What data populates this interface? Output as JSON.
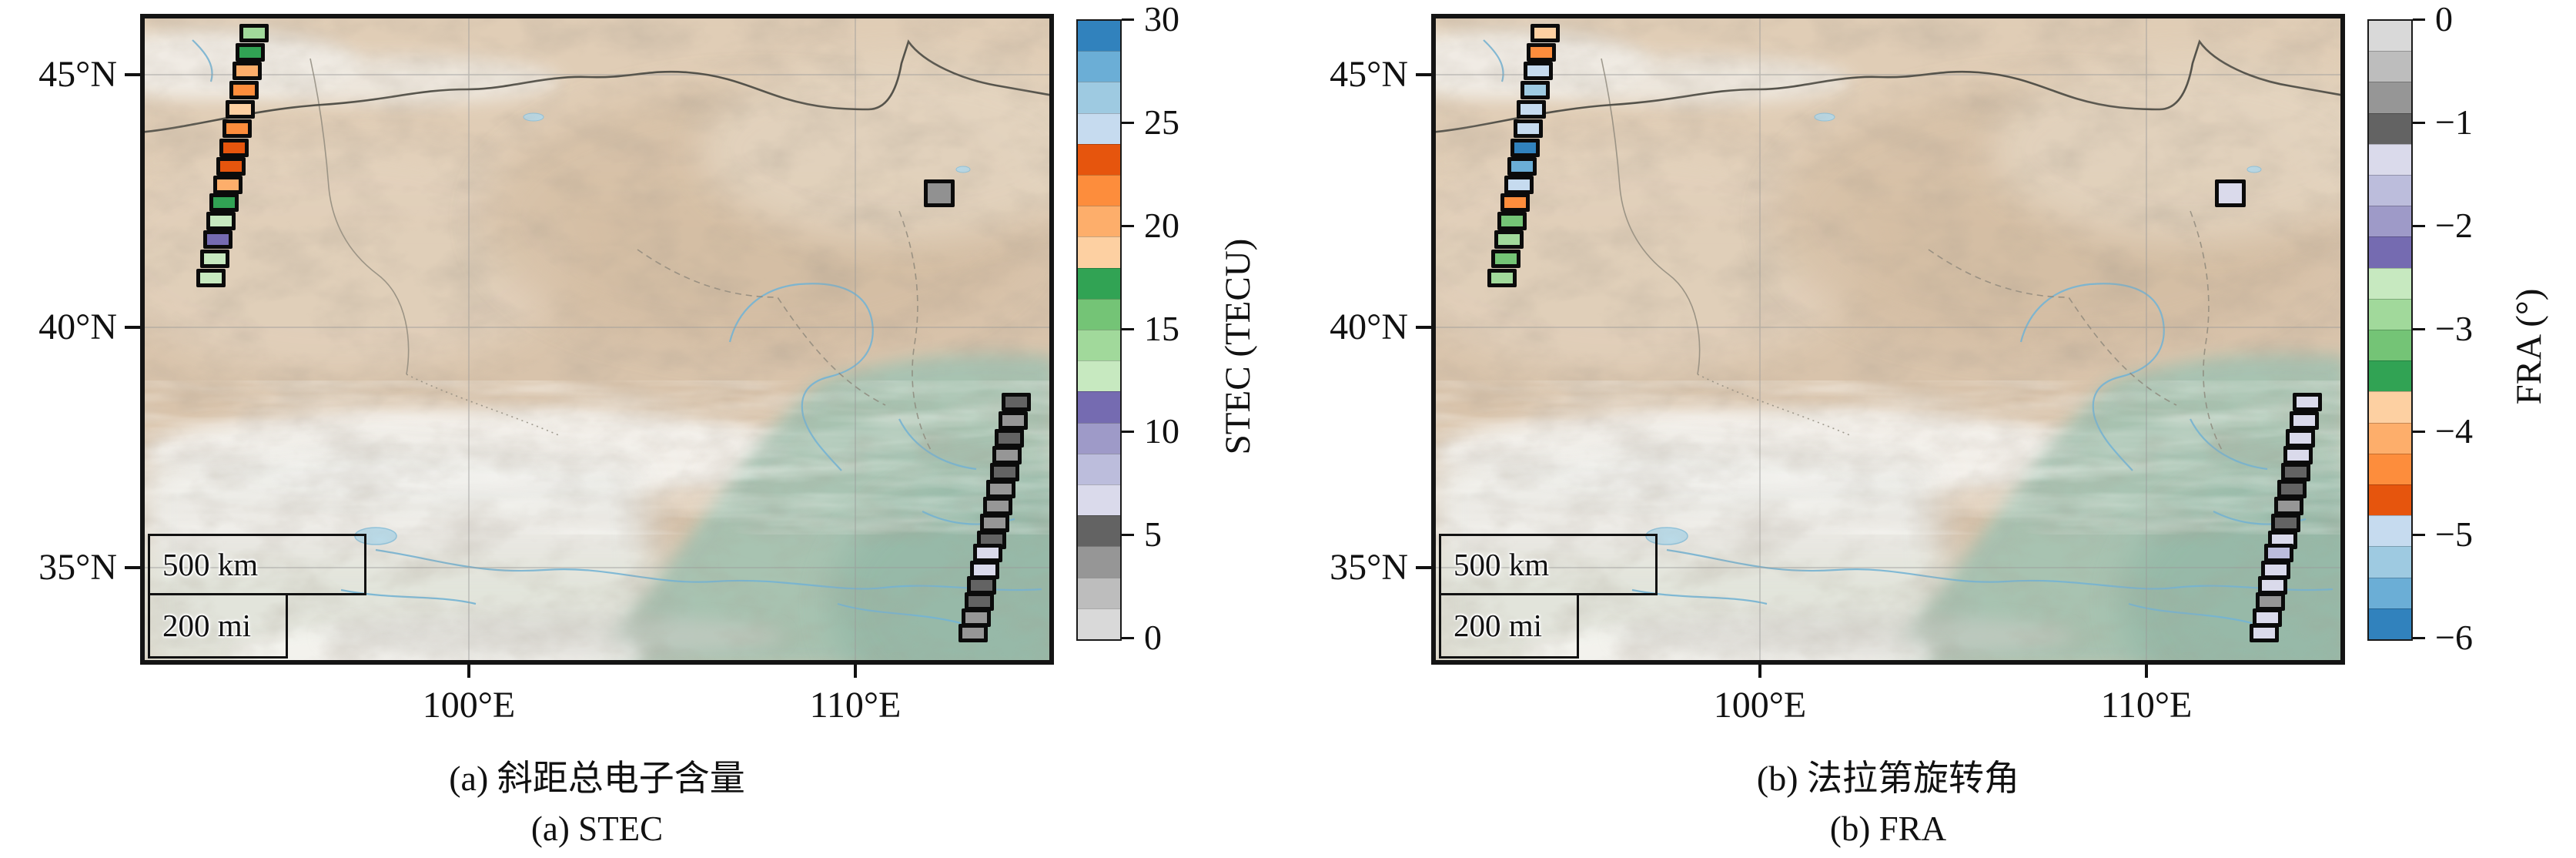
{
  "figure": {
    "panels": [
      {
        "id": "a",
        "caption_cn": "(a) 斜距总电子含量",
        "caption_en": "(a) STEC",
        "scalebar": {
          "km": "500 km",
          "mi": "200 mi"
        },
        "axes": {
          "y_ticks": [
            {
              "label": "45°N",
              "y": 73
            },
            {
              "label": "40°N",
              "y": 401
            },
            {
              "label": "35°N",
              "y": 713
            }
          ],
          "x_ticks": [
            {
              "label": "100°E",
              "x": 421
            },
            {
              "label": "110°E",
              "x": 923
            }
          ]
        },
        "colorbar": {
          "title": "STEC (TECU)",
          "vmin": 0,
          "vmax": 30,
          "ticks": [
            {
              "label": "30",
              "value": 30
            },
            {
              "label": "25",
              "value": 25
            },
            {
              "label": "20",
              "value": 20
            },
            {
              "label": "15",
              "value": 15
            },
            {
              "label": "10",
              "value": 10
            },
            {
              "label": "5",
              "value": 5
            },
            {
              "label": "0",
              "value": 0
            }
          ],
          "segments_top_to_bottom": [
            "#3182bd",
            "#6baed6",
            "#9ecae1",
            "#c6dbef",
            "#e6550d",
            "#fd8d3c",
            "#fdae6b",
            "#fdd0a2",
            "#31a354",
            "#74c476",
            "#a1d99b",
            "#c7e9c0",
            "#756bb1",
            "#9e9ac8",
            "#bcbddc",
            "#dadaeb",
            "#636363",
            "#969696",
            "#bdbdbd",
            "#d9d9d9"
          ]
        },
        "markers": {
          "track_nw": [
            [
              142,
              19,
              "#a1d99b"
            ],
            [
              137,
              44,
              "#31a354"
            ],
            [
              133,
              68,
              "#fdae6b"
            ],
            [
              129,
              93,
              "#fd8d3c"
            ],
            [
              124,
              118,
              "#fdd0a2"
            ],
            [
              120,
              143,
              "#fd8d3c"
            ],
            [
              116,
              168,
              "#e6550d"
            ],
            [
              112,
              192,
              "#e6550d"
            ],
            [
              108,
              216,
              "#fdae6b"
            ],
            [
              103,
              239,
              "#31a354"
            ],
            [
              99,
              263,
              "#c7e9c0"
            ],
            [
              95,
              287,
              "#756bb1"
            ],
            [
              91,
              312,
              "#c7e9c0"
            ],
            [
              86,
              337,
              "#c7e9c0"
            ]
          ],
          "track_se": [
            [
              1132,
              498,
              "#636363"
            ],
            [
              1128,
              522,
              "#969696"
            ],
            [
              1123,
              545,
              "#636363"
            ],
            [
              1120,
              567,
              "#969696"
            ],
            [
              1117,
              589,
              "#636363"
            ],
            [
              1112,
              611,
              "#969696"
            ],
            [
              1108,
              633,
              "#969696"
            ],
            [
              1104,
              655,
              "#969696"
            ],
            [
              1100,
              677,
              "#636363"
            ],
            [
              1095,
              694,
              "#dadaeb"
            ],
            [
              1091,
              716,
              "#dadaeb"
            ],
            [
              1087,
              736,
              "#636363"
            ],
            [
              1084,
              757,
              "#636363"
            ],
            [
              1080,
              778,
              "#969696"
            ],
            [
              1076,
              798,
              "#969696"
            ]
          ],
          "isolated": [
            1032,
            227,
            "#919191"
          ]
        }
      },
      {
        "id": "b",
        "caption_cn": "(b) 法拉第旋转角",
        "caption_en": "(b) FRA",
        "scalebar": {
          "km": "500 km",
          "mi": "200 mi"
        },
        "axes": {
          "y_ticks": [
            {
              "label": "45°N",
              "y": 73
            },
            {
              "label": "40°N",
              "y": 401
            },
            {
              "label": "35°N",
              "y": 713
            }
          ],
          "x_ticks": [
            {
              "label": "100°E",
              "x": 421
            },
            {
              "label": "110°E",
              "x": 923
            }
          ]
        },
        "colorbar": {
          "title": "FRA (°)",
          "vmin": -6,
          "vmax": 0,
          "ticks": [
            {
              "label": "0",
              "value": 0
            },
            {
              "label": "−1",
              "value": -1
            },
            {
              "label": "−2",
              "value": -2
            },
            {
              "label": "−3",
              "value": -3
            },
            {
              "label": "−4",
              "value": -4
            },
            {
              "label": "−5",
              "value": -5
            },
            {
              "label": "−6",
              "value": -6
            }
          ],
          "segments_top_to_bottom": [
            "#d9d9d9",
            "#bdbdbd",
            "#969696",
            "#636363",
            "#dadaeb",
            "#bcbddc",
            "#9e9ac8",
            "#756bb1",
            "#c7e9c0",
            "#a1d99b",
            "#74c476",
            "#31a354",
            "#fdd0a2",
            "#fdae6b",
            "#fd8d3c",
            "#e6550d",
            "#c6dbef",
            "#9ecae1",
            "#6baed6",
            "#3182bd"
          ]
        },
        "markers": {
          "track_nw": [
            [
              142,
              19,
              "#fdd0a2"
            ],
            [
              137,
              44,
              "#fd8d3c"
            ],
            [
              133,
              68,
              "#c6dbef"
            ],
            [
              129,
              93,
              "#9ecae1"
            ],
            [
              124,
              118,
              "#c6dbef"
            ],
            [
              120,
              143,
              "#c6dbef"
            ],
            [
              116,
              168,
              "#3182bd"
            ],
            [
              112,
              192,
              "#6baed6"
            ],
            [
              108,
              216,
              "#c6dbef"
            ],
            [
              103,
              239,
              "#fd8d3c"
            ],
            [
              99,
              263,
              "#74c476"
            ],
            [
              95,
              287,
              "#a1d99b"
            ],
            [
              91,
              312,
              "#74c476"
            ],
            [
              86,
              337,
              "#a1d99b"
            ]
          ],
          "track_se": [
            [
              1132,
              498,
              "#dadaeb"
            ],
            [
              1128,
              522,
              "#dadaeb"
            ],
            [
              1123,
              545,
              "#dadaeb"
            ],
            [
              1120,
              567,
              "#dadaeb"
            ],
            [
              1117,
              589,
              "#636363"
            ],
            [
              1112,
              611,
              "#636363"
            ],
            [
              1108,
              633,
              "#969696"
            ],
            [
              1104,
              655,
              "#636363"
            ],
            [
              1100,
              677,
              "#dadaeb"
            ],
            [
              1095,
              694,
              "#bcbddc"
            ],
            [
              1091,
              716,
              "#dadaeb"
            ],
            [
              1087,
              736,
              "#dadaeb"
            ],
            [
              1084,
              757,
              "#969696"
            ],
            [
              1080,
              778,
              "#dadaeb"
            ],
            [
              1076,
              798,
              "#dadaeb"
            ]
          ],
          "isolated": [
            1032,
            227,
            "#dadaeb"
          ]
        }
      }
    ]
  },
  "chart_data": [
    {
      "type": "heatmap",
      "subtype": "map-swath-cells",
      "title": "(a) 斜距总电子含量 / (a) STEC",
      "colorbar_label": "STEC (TECU)",
      "colorbar_range": [
        0,
        30
      ],
      "colorbar_tick_labels": [
        "0",
        "5",
        "10",
        "15",
        "20",
        "25",
        "30"
      ],
      "colorbar_levels_per_segment_tecu": 1.5,
      "map_extent": {
        "lon": [
          "~91.5°E",
          "~115°E"
        ],
        "lat": [
          "~33.5°N",
          "~46°N"
        ]
      },
      "axis_tick_labels": {
        "x": [
          "100°E",
          "110°E"
        ],
        "y": [
          "45°N",
          "40°N",
          "35°N"
        ]
      },
      "scalebar": [
        "500 km",
        "200 mi"
      ],
      "series": [
        {
          "name": "northwest-swath (≈94°E, 41–46°N)",
          "values_tecu_estimated": [
            14.3,
            17.3,
            20.3,
            21.8,
            18.8,
            21.8,
            23.3,
            23.3,
            20.3,
            17.3,
            12.8,
            11.3,
            12.8,
            12.8
          ]
        },
        {
          "name": "southeast-swath (≈113–114°E, 33.5–38.5°N)",
          "values_tecu_estimated": [
            5.3,
            3.8,
            5.3,
            3.8,
            5.3,
            3.8,
            3.8,
            3.8,
            5.3,
            6.8,
            6.8,
            5.3,
            5.3,
            3.8,
            3.8
          ]
        },
        {
          "name": "isolated-cell (≈112°E, 42.5°N)",
          "values_tecu_estimated": [
            4.5
          ]
        }
      ]
    },
    {
      "type": "heatmap",
      "subtype": "map-swath-cells",
      "title": "(b) 法拉第旋转角 / (b) FRA",
      "colorbar_label": "FRA (°)",
      "colorbar_range": [
        -6,
        0
      ],
      "colorbar_tick_labels": [
        "0",
        "−1",
        "−2",
        "−3",
        "−4",
        "−5",
        "−6"
      ],
      "colorbar_levels_per_segment_deg": 0.3,
      "map_extent": {
        "lon": [
          "~91.5°E",
          "~115°E"
        ],
        "lat": [
          "~33.5°N",
          "~46°N"
        ]
      },
      "axis_tick_labels": {
        "x": [
          "100°E",
          "110°E"
        ],
        "y": [
          "45°N",
          "40°N",
          "35°N"
        ]
      },
      "scalebar": [
        "500 km",
        "200 mi"
      ],
      "series": [
        {
          "name": "northwest-swath (≈94°E, 41–46°N)",
          "values_deg_estimated": [
            -3.75,
            -4.35,
            -4.95,
            -5.25,
            -4.95,
            -4.95,
            -5.85,
            -5.55,
            -4.95,
            -4.35,
            -3.15,
            -2.85,
            -3.15,
            -2.85
          ]
        },
        {
          "name": "southeast-swath (≈113–114°E, 33.5–38.5°N)",
          "values_deg_estimated": [
            -1.35,
            -1.35,
            -1.35,
            -1.35,
            -1.05,
            -1.05,
            -0.75,
            -1.05,
            -1.35,
            -1.65,
            -1.35,
            -1.35,
            -0.75,
            -1.35,
            -1.35
          ]
        },
        {
          "name": "isolated-cell (≈112°E, 42.5°N)",
          "values_deg_estimated": [
            -1.35
          ]
        }
      ]
    }
  ]
}
